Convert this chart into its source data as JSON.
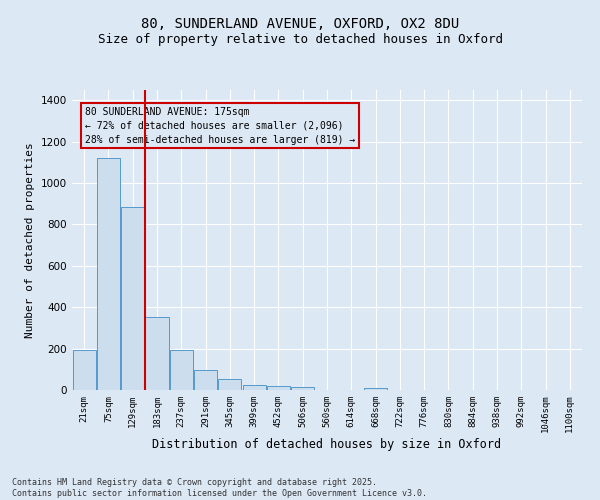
{
  "title_line1": "80, SUNDERLAND AVENUE, OXFORD, OX2 8DU",
  "title_line2": "Size of property relative to detached houses in Oxford",
  "xlabel": "Distribution of detached houses by size in Oxford",
  "ylabel": "Number of detached properties",
  "categories": [
    "21sqm",
    "75sqm",
    "129sqm",
    "183sqm",
    "237sqm",
    "291sqm",
    "345sqm",
    "399sqm",
    "452sqm",
    "506sqm",
    "560sqm",
    "614sqm",
    "668sqm",
    "722sqm",
    "776sqm",
    "830sqm",
    "884sqm",
    "938sqm",
    "992sqm",
    "1046sqm",
    "1100sqm"
  ],
  "values": [
    195,
    1120,
    885,
    355,
    195,
    95,
    55,
    22,
    18,
    15,
    0,
    0,
    12,
    0,
    0,
    0,
    0,
    0,
    0,
    0,
    0
  ],
  "bar_color": "#ccdded",
  "bar_edge_color": "#5599cc",
  "vline_color": "#cc0000",
  "annotation_text": "80 SUNDERLAND AVENUE: 175sqm\n← 72% of detached houses are smaller (2,096)\n28% of semi-detached houses are larger (819) →",
  "annotation_box_color": "#cc0000",
  "ylim": [
    0,
    1450
  ],
  "yticks": [
    0,
    200,
    400,
    600,
    800,
    1000,
    1200,
    1400
  ],
  "background_color": "#dde8f5",
  "grid_color": "#ffffff",
  "footer_line1": "Contains HM Land Registry data © Crown copyright and database right 2025.",
  "footer_line2": "Contains public sector information licensed under the Open Government Licence v3.0.",
  "title_fontsize": 10,
  "subtitle_fontsize": 9,
  "annotation_fontsize": 7,
  "footer_fontsize": 6,
  "ylabel_fontsize": 8,
  "xlabel_fontsize": 8.5
}
